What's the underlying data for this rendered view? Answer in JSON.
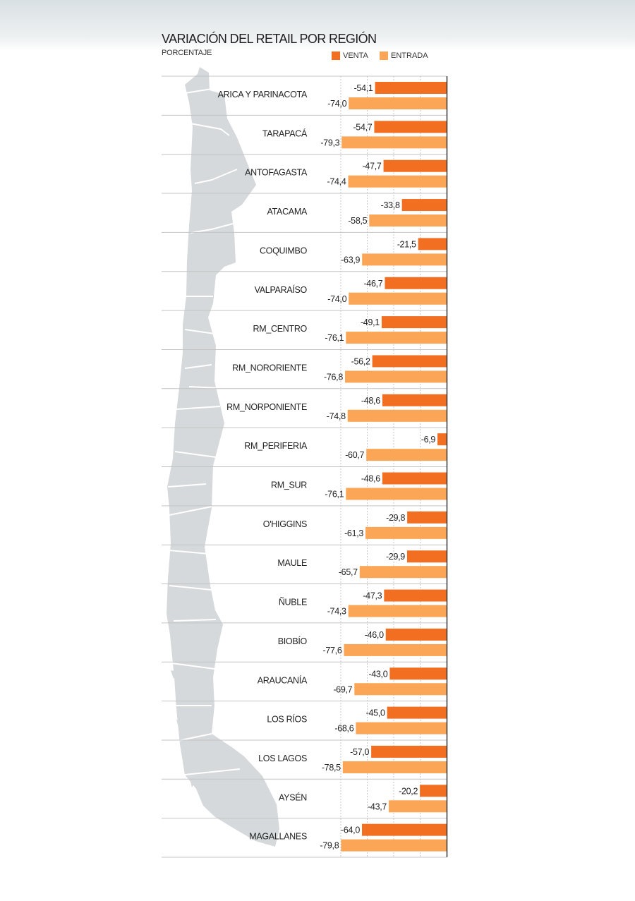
{
  "chart_data": {
    "type": "bar",
    "orientation": "horizontal",
    "title": "VARIACIÓN DEL RETAIL POR REGIÓN",
    "subtitle": "PORCENTAJE",
    "categories": [
      "ARICA Y PARINACOTA",
      "TARAPACÁ",
      "ANTOFAGASTA",
      "ATACAMA",
      "COQUIMBO",
      "VALPARAÍSO",
      "RM_CENTRO",
      "RM_NORORIENTE",
      "RM_NORPONIENTE",
      "RM_PERIFERIA",
      "RM_SUR",
      "O'HIGGINS",
      "MAULE",
      "ÑUBLE",
      "BIOBÍO",
      "ARAUCANÍA",
      "LOS RÍOS",
      "LOS LAGOS",
      "AYSÉN",
      "MAGALLANES"
    ],
    "series": [
      {
        "name": "VENTA",
        "color": "#f26f21",
        "values": [
          -54.1,
          -54.7,
          -47.7,
          -33.8,
          -21.5,
          -46.7,
          -49.1,
          -56.2,
          -48.6,
          -6.9,
          -48.6,
          -29.8,
          -29.9,
          -47.3,
          -46.0,
          -43.0,
          -45.0,
          -57.0,
          -20.2,
          -64.0
        ],
        "labels": [
          "-54,1",
          "-54,7",
          "-47,7",
          "-33,8",
          "-21,5",
          "-46,7",
          "-49,1",
          "-56,2",
          "-48,6",
          "-6,9",
          "-48,6",
          "-29,8",
          "-29,9",
          "-47,3",
          "-46,0",
          "-43,0",
          "-45,0",
          "-57,0",
          "-20,2",
          "-64,0"
        ]
      },
      {
        "name": "ENTRADA",
        "color": "#fba556",
        "values": [
          -74.0,
          -79.3,
          -74.4,
          -58.5,
          -63.9,
          -74.0,
          -76.1,
          -76.8,
          -74.8,
          -60.7,
          -76.1,
          -61.3,
          -65.7,
          -74.3,
          -77.6,
          -69.7,
          -68.6,
          -78.5,
          -43.7,
          -79.8
        ],
        "labels": [
          "-74,0",
          "-79,3",
          "-74,4",
          "-58,5",
          "-63,9",
          "-74,0",
          "-76,1",
          "-76,8",
          "-74,8",
          "-60,7",
          "-76,1",
          "-61,3",
          "-65,7",
          "-74,3",
          "-77,6",
          "-69,7",
          "-68,6",
          "-78,5",
          "-43,7",
          "-79,8"
        ]
      }
    ],
    "xlim": [
      -80,
      0
    ],
    "grid_values": [
      -80,
      -60,
      -40,
      -20
    ],
    "grid": true,
    "legend_position": "top-right",
    "background_graphic": "chile-map-silhouette",
    "map_color": "#d5d9db"
  }
}
